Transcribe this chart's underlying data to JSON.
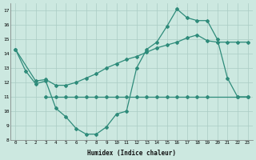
{
  "series1_x": [
    0,
    1,
    2,
    3,
    4,
    5,
    6,
    7,
    8,
    9,
    10,
    11,
    12,
    13,
    14,
    15,
    16,
    17,
    18,
    19,
    20,
    21,
    22,
    23
  ],
  "series1_y": [
    14.3,
    12.8,
    11.9,
    12.1,
    10.2,
    9.6,
    8.8,
    8.4,
    8.4,
    8.9,
    9.8,
    10.0,
    13.0,
    14.3,
    14.8,
    15.9,
    17.1,
    16.5,
    16.3,
    16.3,
    15.0,
    12.3,
    11.0,
    11.0
  ],
  "series2_x": [
    3,
    4,
    5,
    6,
    7,
    8,
    9,
    10,
    11,
    12,
    13,
    14,
    15,
    16,
    17,
    18,
    19,
    22,
    23
  ],
  "series2_y": [
    11.0,
    11.0,
    11.0,
    11.0,
    11.0,
    11.0,
    11.0,
    11.0,
    11.0,
    11.0,
    11.0,
    11.0,
    11.0,
    11.0,
    11.0,
    11.0,
    11.0,
    11.0,
    11.0
  ],
  "series3_x": [
    0,
    2,
    3,
    4,
    5,
    6,
    7,
    8,
    9,
    10,
    11,
    12,
    13,
    14,
    15,
    16,
    17,
    18,
    19,
    20,
    21,
    22,
    23
  ],
  "series3_y": [
    14.3,
    12.1,
    12.2,
    11.8,
    11.8,
    12.0,
    12.3,
    12.6,
    13.0,
    13.3,
    13.6,
    13.8,
    14.1,
    14.4,
    14.6,
    14.8,
    15.1,
    15.3,
    14.9,
    14.8,
    14.8,
    14.8,
    14.8
  ],
  "line_color": "#2e8b7a",
  "bg_color": "#cce8e0",
  "grid_color": "#aaccc4",
  "xlabel": "Humidex (Indice chaleur)",
  "ylim": [
    8,
    17.5
  ],
  "xlim": [
    -0.5,
    23.5
  ],
  "yticks": [
    8,
    9,
    10,
    11,
    12,
    13,
    14,
    15,
    16,
    17
  ],
  "xticks": [
    0,
    1,
    2,
    3,
    4,
    5,
    6,
    7,
    8,
    9,
    10,
    11,
    12,
    13,
    14,
    15,
    16,
    17,
    18,
    19,
    20,
    21,
    22,
    23
  ]
}
